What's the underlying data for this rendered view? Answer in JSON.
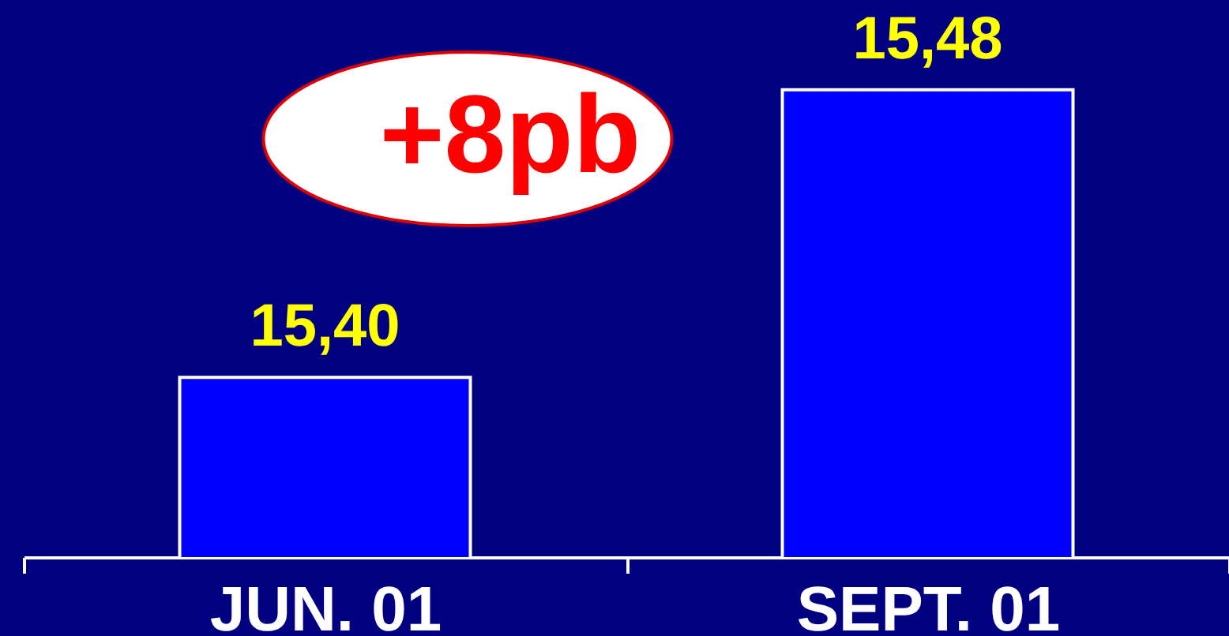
{
  "chart_data": {
    "type": "bar",
    "categories": [
      "JUN. 01",
      "SEPT. 01"
    ],
    "values": [
      15.4,
      15.48
    ],
    "value_labels": [
      "15,40",
      "15,48"
    ],
    "color": "#0000ff",
    "ylim": [
      15.35,
      15.505
    ],
    "tick_labels": "x",
    "grid": false,
    "annotations": [
      "+8pb"
    ]
  }
}
